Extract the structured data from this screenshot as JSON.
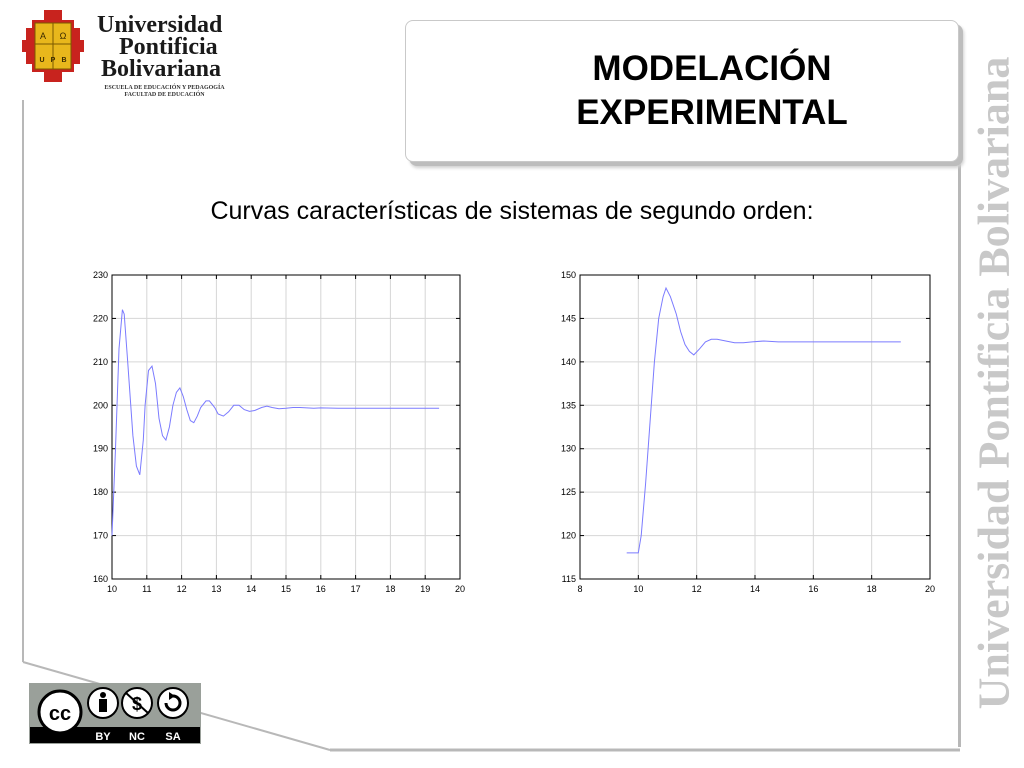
{
  "logo": {
    "crest_letters": [
      "A",
      "Ω",
      "U",
      "P",
      "B"
    ],
    "line1": "Universidad",
    "line2": "Pontificia",
    "line3": "Bolivariana",
    "sub1": "ESCUELA DE EDUCACIÓN Y PEDAGOGÍA",
    "sub2": "FACULTAD DE EDUCACIÓN"
  },
  "title": {
    "line1": "MODELACIÓN",
    "line2": "EXPERIMENTAL"
  },
  "subtitle": "Curvas características de sistemas de segundo orden:",
  "watermark": "Universidad Pontificia Bolivariana",
  "license": {
    "badge": "cc",
    "items": [
      "BY",
      "NC",
      "SA"
    ]
  },
  "colors": {
    "curve": "#7b7bff",
    "grid": "#d6d6d6",
    "frame": "#b8b8b8"
  },
  "chart_data": [
    {
      "type": "line",
      "title": "",
      "xlabel": "",
      "ylabel": "",
      "xlim": [
        10,
        20
      ],
      "ylim": [
        160,
        230
      ],
      "xticks": [
        10,
        11,
        12,
        13,
        14,
        15,
        16,
        17,
        18,
        19,
        20
      ],
      "yticks": [
        160,
        170,
        180,
        190,
        200,
        210,
        220,
        230
      ],
      "grid": true,
      "series": [
        {
          "x": [
            10.0,
            10.1,
            10.2,
            10.3,
            10.35,
            10.45,
            10.6,
            10.7,
            10.8,
            10.9,
            10.95,
            11.05,
            11.15,
            11.25,
            11.35,
            11.45,
            11.55,
            11.65,
            11.75,
            11.85,
            11.95,
            12.05,
            12.15,
            12.25,
            12.35,
            12.45,
            12.55,
            12.7,
            12.8,
            12.95,
            13.05,
            13.2,
            13.35,
            13.5,
            13.65,
            13.8,
            13.95,
            14.1,
            14.3,
            14.45,
            14.6,
            14.8,
            15.0,
            15.2,
            15.4,
            15.6,
            15.8,
            16.0,
            16.5,
            17.0,
            18.0,
            19.0,
            19.4
          ],
          "y": [
            170,
            190,
            213,
            222,
            221,
            210,
            193,
            186,
            184,
            192,
            200,
            208,
            209,
            205,
            197,
            193,
            192,
            195,
            200,
            203,
            204,
            202,
            199,
            196.5,
            196,
            197.5,
            199.5,
            201,
            201,
            199.5,
            198,
            197.5,
            198.5,
            200,
            200,
            199,
            198.6,
            198.8,
            199.5,
            199.8,
            199.5,
            199.2,
            199.3,
            199.5,
            199.5,
            199.4,
            199.3,
            199.4,
            199.3,
            199.3,
            199.3,
            199.3,
            199.3
          ]
        }
      ]
    },
    {
      "type": "line",
      "title": "",
      "xlabel": "",
      "ylabel": "",
      "xlim": [
        8,
        20
      ],
      "ylim": [
        115,
        150
      ],
      "xticks": [
        8,
        10,
        12,
        14,
        16,
        18,
        20
      ],
      "yticks": [
        115,
        120,
        125,
        130,
        135,
        140,
        145,
        150
      ],
      "grid": true,
      "series": [
        {
          "x": [
            9.6,
            10.0,
            10.1,
            10.25,
            10.4,
            10.55,
            10.7,
            10.85,
            10.95,
            11.1,
            11.3,
            11.45,
            11.6,
            11.75,
            11.9,
            12.1,
            12.3,
            12.5,
            12.7,
            13.0,
            13.3,
            13.6,
            13.9,
            14.3,
            14.8,
            15.5,
            16.5,
            17.5,
            18.5,
            19.0
          ],
          "y": [
            118,
            118,
            120,
            126,
            133,
            140,
            145,
            147.5,
            148.5,
            147.5,
            145.5,
            143.5,
            142,
            141.2,
            140.8,
            141.5,
            142.3,
            142.6,
            142.6,
            142.4,
            142.2,
            142.2,
            142.3,
            142.4,
            142.3,
            142.3,
            142.3,
            142.3,
            142.3,
            142.3
          ]
        }
      ]
    }
  ]
}
